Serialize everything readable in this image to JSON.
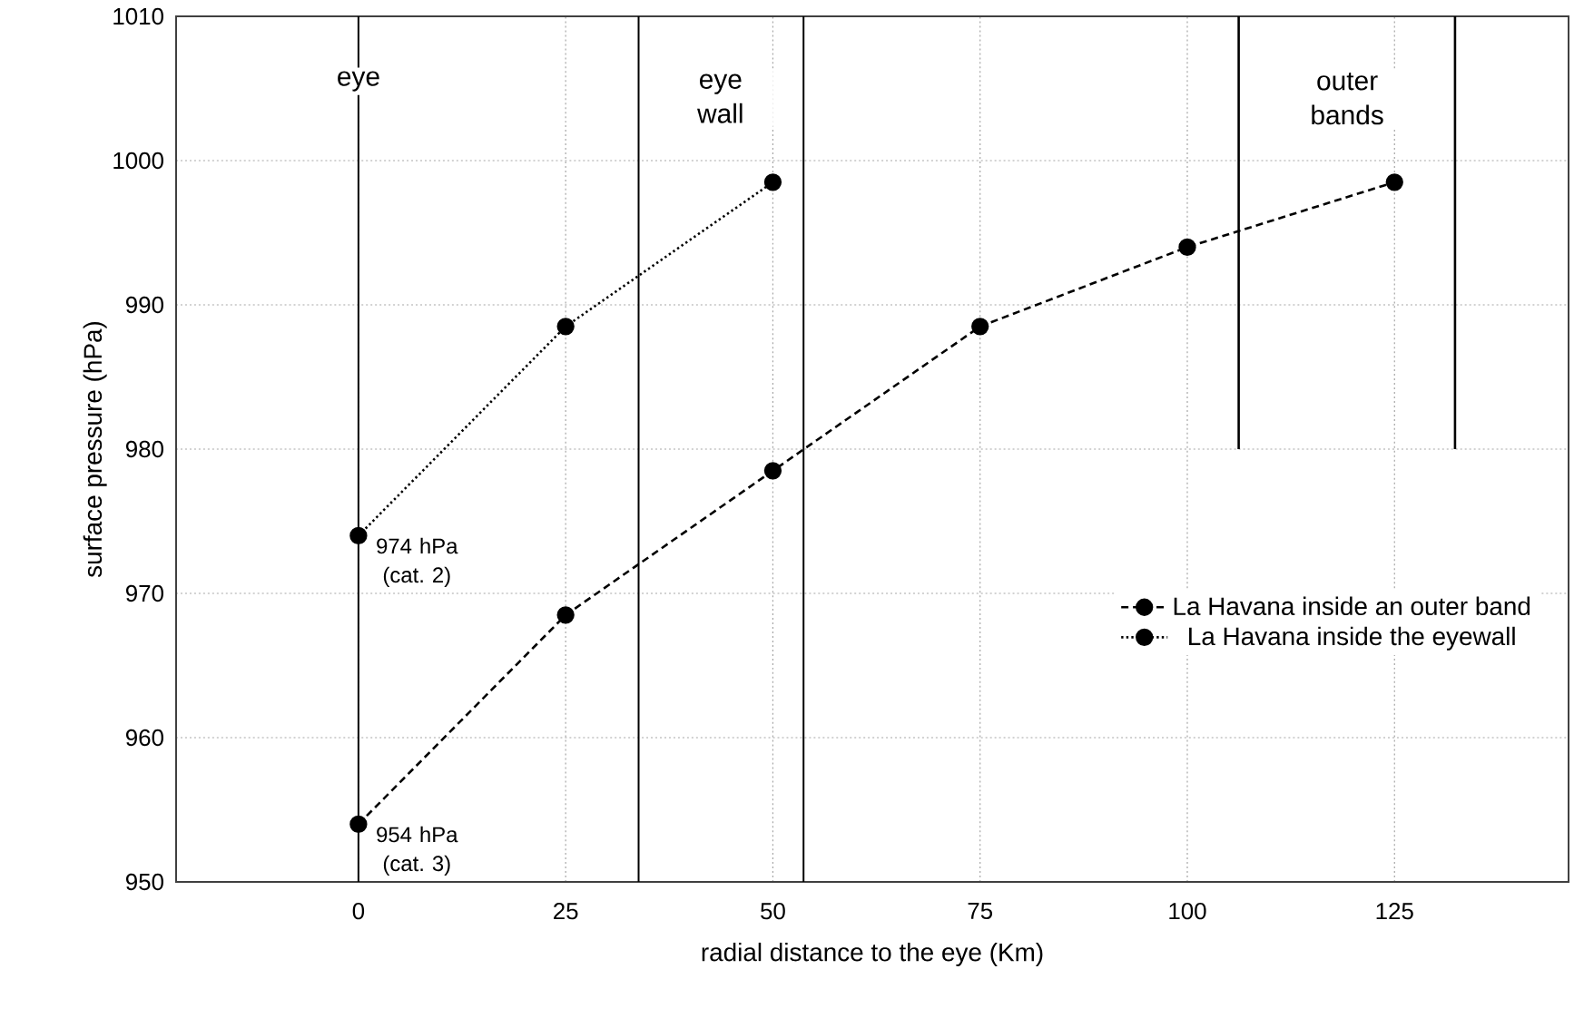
{
  "chart_data": {
    "type": "line",
    "xlabel": "radial distance to the eye (Km)",
    "ylabel": "surface pressure (hPa)",
    "xlim": [
      -22,
      146
    ],
    "xticks": [
      0,
      25,
      50,
      75,
      100,
      125
    ],
    "ylim": [
      950,
      1010
    ],
    "yticks": [
      950,
      960,
      970,
      980,
      990,
      1000,
      1010
    ],
    "grid": true,
    "legend": "right",
    "marker": "circle",
    "series": [
      {
        "name": "La Havana inside an outer band",
        "color": "#000000",
        "line_style": "dashed",
        "x": [
          0,
          25,
          50,
          75,
          100,
          125
        ],
        "values": [
          954,
          968.5,
          978.5,
          988.5,
          994,
          998.5
        ]
      },
      {
        "name": "La Havana inside the eyewall",
        "color": "#000000",
        "line_style": "dotted",
        "x": [
          0,
          25,
          50
        ],
        "values": [
          974,
          988.5,
          998.5
        ]
      },
      {
        "color": "#000000",
        "line_style": "solid",
        "marker": "none",
        "x": [
          106.2,
          106.2
        ],
        "values": [
          980,
          1010
        ]
      },
      {
        "color": "#000000",
        "line_style": "solid",
        "marker": "none",
        "x": [
          132.3,
          132.3
        ],
        "values": [
          980,
          1010
        ]
      }
    ],
    "ref_lines": [
      {
        "axis": "x",
        "value": 0,
        "color": "#000000",
        "line_style": "solid"
      },
      {
        "axis": "x",
        "value": 33.8,
        "color": "#000000",
        "line_style": "solid"
      },
      {
        "axis": "x",
        "value": 53.7,
        "color": "#000000",
        "line_style": "solid"
      }
    ],
    "annotations": [
      "eye",
      "eye wall",
      "outer bands",
      {
        "text": "974 hPa (cat. 2)",
        "x": 0,
        "y": 974
      },
      {
        "text": "954 hPa (cat. 3)",
        "x": 0,
        "y": 954
      }
    ]
  }
}
